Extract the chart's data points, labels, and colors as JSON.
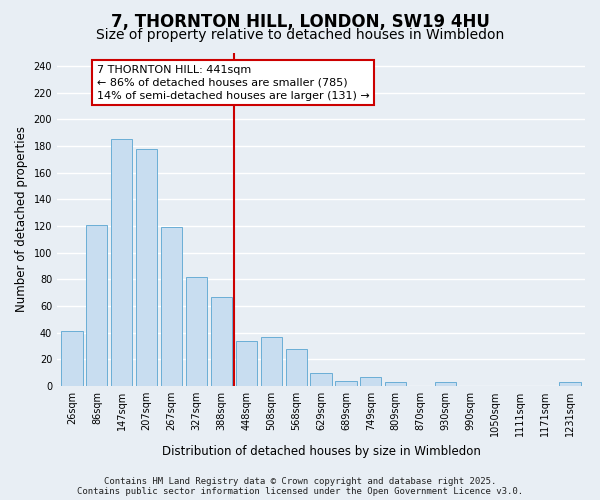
{
  "title": "7, THORNTON HILL, LONDON, SW19 4HU",
  "subtitle": "Size of property relative to detached houses in Wimbledon",
  "xlabel": "Distribution of detached houses by size in Wimbledon",
  "ylabel": "Number of detached properties",
  "bar_labels": [
    "26sqm",
    "86sqm",
    "147sqm",
    "207sqm",
    "267sqm",
    "327sqm",
    "388sqm",
    "448sqm",
    "508sqm",
    "568sqm",
    "629sqm",
    "689sqm",
    "749sqm",
    "809sqm",
    "870sqm",
    "930sqm",
    "990sqm",
    "1050sqm",
    "1111sqm",
    "1171sqm",
    "1231sqm"
  ],
  "bar_values": [
    41,
    121,
    185,
    178,
    119,
    82,
    67,
    34,
    37,
    28,
    10,
    4,
    7,
    3,
    0,
    3,
    0,
    0,
    0,
    0,
    3
  ],
  "bar_color": "#c8ddf0",
  "bar_edge_color": "#6aaed6",
  "ylim": [
    0,
    250
  ],
  "yticks": [
    0,
    20,
    40,
    60,
    80,
    100,
    120,
    140,
    160,
    180,
    200,
    220,
    240
  ],
  "vline_index": 7,
  "vline_color": "#cc0000",
  "annotation_title": "7 THORNTON HILL: 441sqm",
  "annotation_line1": "← 86% of detached houses are smaller (785)",
  "annotation_line2": "14% of semi-detached houses are larger (131) →",
  "annotation_box_color": "#ffffff",
  "annotation_box_edge": "#cc0000",
  "footer_line1": "Contains HM Land Registry data © Crown copyright and database right 2025.",
  "footer_line2": "Contains public sector information licensed under the Open Government Licence v3.0.",
  "background_color": "#e8eef4",
  "grid_color": "#ffffff",
  "title_fontsize": 12,
  "subtitle_fontsize": 10,
  "axis_label_fontsize": 8.5,
  "tick_fontsize": 7,
  "footer_fontsize": 6.5,
  "ann_fontsize": 8
}
